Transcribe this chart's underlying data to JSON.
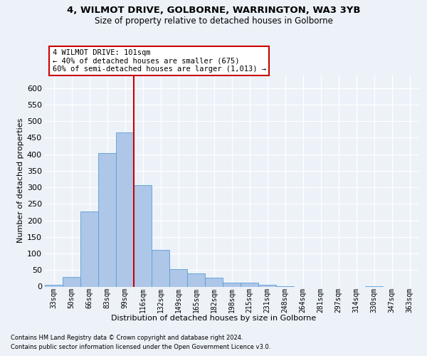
{
  "title_line1": "4, WILMOT DRIVE, GOLBORNE, WARRINGTON, WA3 3YB",
  "title_line2": "Size of property relative to detached houses in Golborne",
  "xlabel": "Distribution of detached houses by size in Golborne",
  "ylabel": "Number of detached properties",
  "footnote1": "Contains HM Land Registry data © Crown copyright and database right 2024.",
  "footnote2": "Contains public sector information licensed under the Open Government Licence v3.0.",
  "annotation_line1": "4 WILMOT DRIVE: 101sqm",
  "annotation_line2": "← 40% of detached houses are smaller (675)",
  "annotation_line3": "60% of semi-detached houses are larger (1,013) →",
  "bar_color": "#aec6e8",
  "bar_edge_color": "#5a9fd4",
  "vline_color": "#cc0000",
  "vline_x": 4.5,
  "categories": [
    "33sqm",
    "50sqm",
    "66sqm",
    "83sqm",
    "99sqm",
    "116sqm",
    "132sqm",
    "149sqm",
    "165sqm",
    "182sqm",
    "198sqm",
    "215sqm",
    "231sqm",
    "248sqm",
    "264sqm",
    "281sqm",
    "297sqm",
    "314sqm",
    "330sqm",
    "347sqm",
    "363sqm"
  ],
  "values": [
    5,
    30,
    228,
    403,
    465,
    307,
    110,
    53,
    39,
    26,
    12,
    11,
    5,
    1,
    0,
    0,
    0,
    0,
    2,
    0,
    0
  ],
  "ylim_max": 640,
  "yticks": [
    0,
    50,
    100,
    150,
    200,
    250,
    300,
    350,
    400,
    450,
    500,
    550,
    600
  ],
  "background_color": "#edf2f9",
  "grid_color": "#ffffff",
  "title_fontsize": 9.5,
  "subtitle_fontsize": 8.5,
  "tick_fontsize": 7,
  "label_fontsize": 8,
  "footnote_fontsize": 6,
  "annot_fontsize": 7.5
}
